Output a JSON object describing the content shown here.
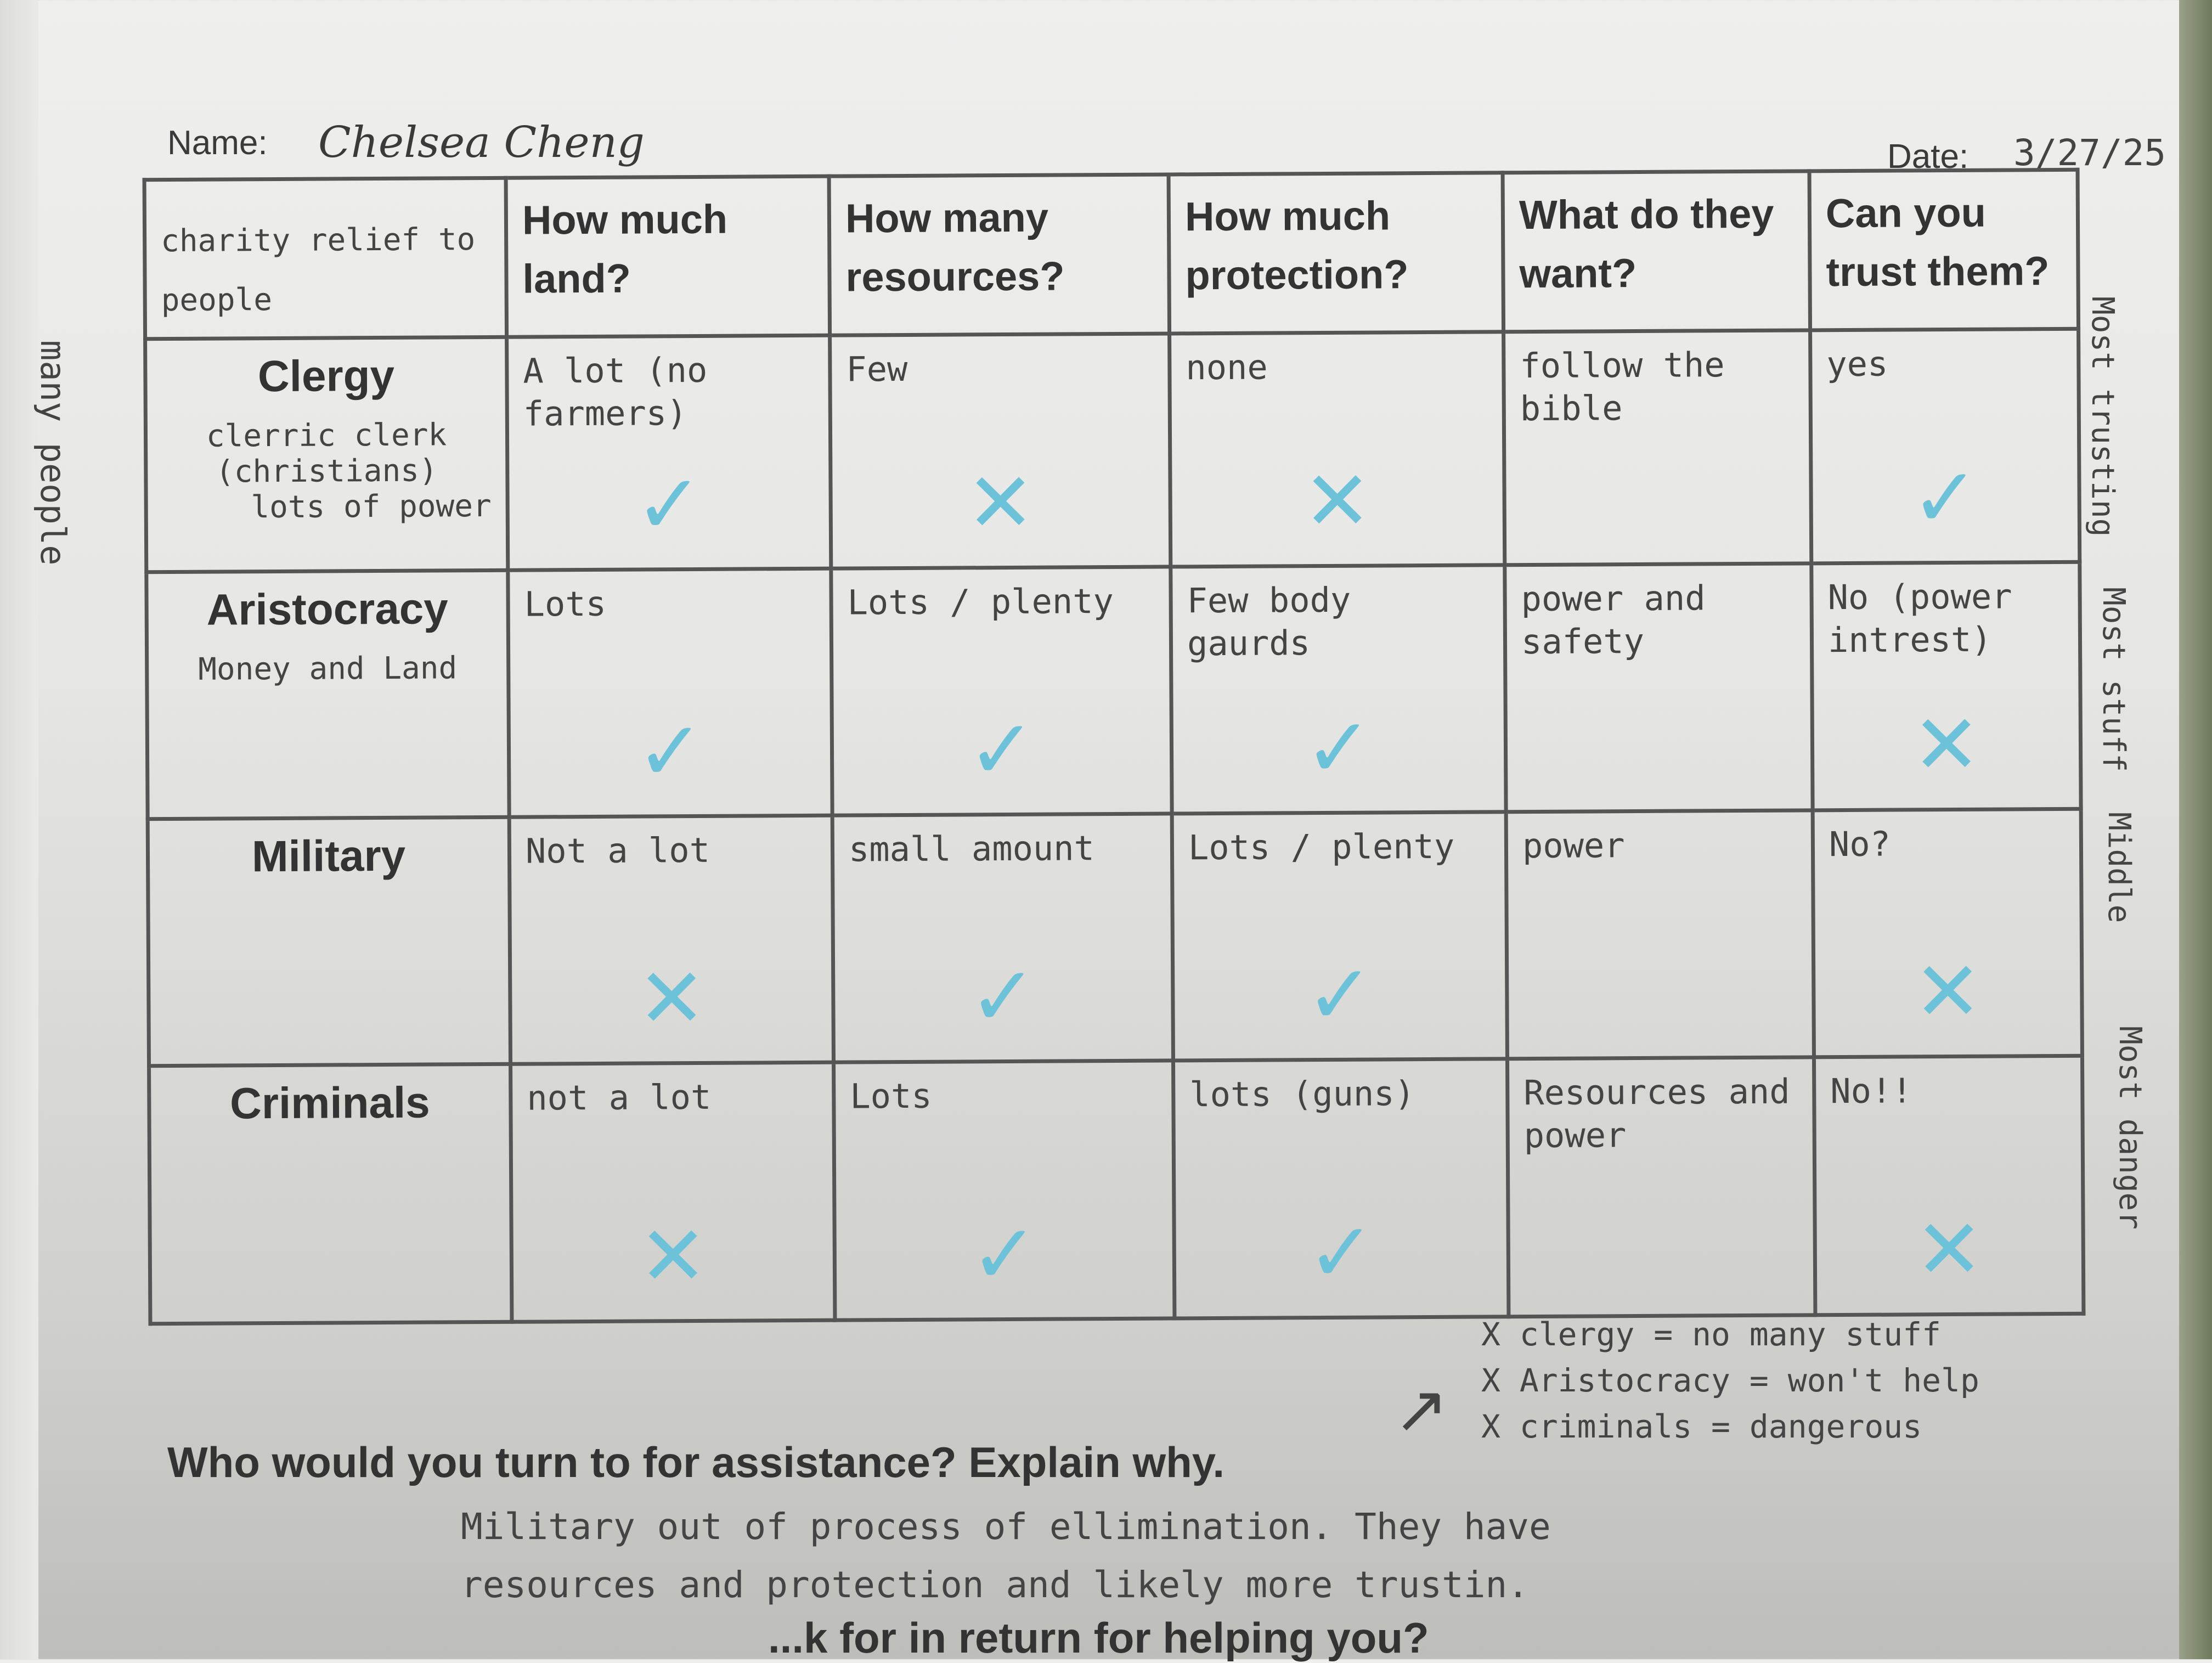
{
  "header": {
    "name_label": "Name:",
    "name_value": "Chelsea Cheng",
    "date_label": "Date:",
    "date_value": "3/27/25"
  },
  "table": {
    "corner_note": "charity relief to people",
    "columns": [
      "How much land?",
      "How many resources?",
      "How much protection?",
      "What do they want?",
      "Can you trust them?"
    ],
    "rows": [
      {
        "label": "Clergy",
        "note": "clerric clerk (christians)",
        "side_note": "lots of power",
        "cells": [
          "A lot (no farmers)",
          "Few",
          "none",
          "follow the bible",
          "yes"
        ],
        "marks": [
          "check",
          "x",
          "x",
          "",
          "check"
        ]
      },
      {
        "label": "Aristocracy",
        "note": "Money and Land",
        "side_note": "",
        "cells": [
          "Lots",
          "Lots / plenty",
          "Few body gaurds",
          "power and safety",
          "No (power intrest)"
        ],
        "marks": [
          "check",
          "check",
          "check",
          "",
          "x"
        ]
      },
      {
        "label": "Military",
        "note": "",
        "side_note": "",
        "cells": [
          "Not a lot",
          "small amount",
          "Lots / plenty",
          "power",
          "No?"
        ],
        "marks": [
          "x",
          "check",
          "check",
          "",
          "x"
        ]
      },
      {
        "label": "Criminals",
        "note": "",
        "side_note": "",
        "cells": [
          "not a lot",
          "Lots",
          "lots (guns)",
          "Resources and power",
          "No!!"
        ],
        "marks": [
          "x",
          "check",
          "check",
          "",
          "x"
        ]
      }
    ],
    "right_notes": [
      "Most trusting",
      "Most stuff",
      "Middle",
      "Most danger"
    ],
    "left_note": "many people"
  },
  "elimination": [
    "X clergy = no many stuff",
    "X Aristocracy = won't help",
    "X criminals = dangerous"
  ],
  "question1": "Who would you turn to for assistance?  Explain why.",
  "answer1": [
    "Military out of process of ellimination. They have",
    "resources and protection and likely more trustin."
  ],
  "question2_partial": "...k for in return for helping you?",
  "colors": {
    "ink": "#444444",
    "marker": "#6cc2d8",
    "print": "#333333"
  },
  "mark_glyphs": {
    "check": "✓",
    "x": "✕"
  }
}
